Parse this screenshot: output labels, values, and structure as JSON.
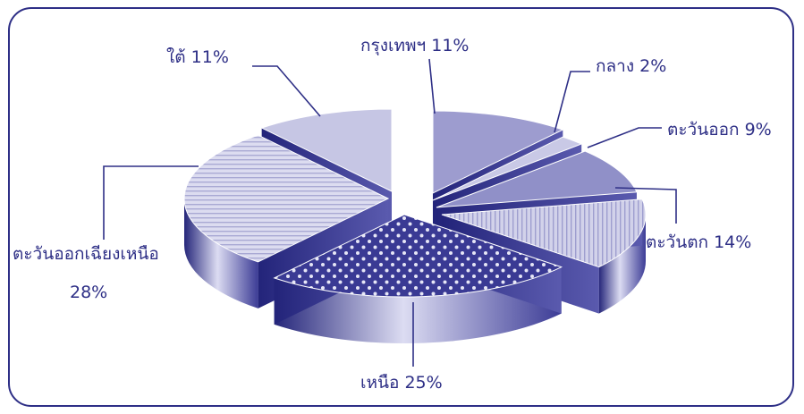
{
  "chart_data": {
    "type": "pie",
    "style": "3d-exploded",
    "slices": [
      {
        "label": "กรุงเทพฯ 11%",
        "value": 11,
        "color": "#9d9ccf",
        "pattern": "solid"
      },
      {
        "label": "กลาง 2%",
        "value": 2,
        "color": "#c9c9e6",
        "pattern": "solid"
      },
      {
        "label": "ตะวันออก 9%",
        "value": 9,
        "color": "#9090c8",
        "pattern": "solid"
      },
      {
        "label": "ตะวันตก 14%",
        "value": 14,
        "color": "#c4c4e2",
        "pattern": "vertical-stripes"
      },
      {
        "label": "เหนือ 25%",
        "value": 25,
        "color": "#3a3a94",
        "pattern": "dots"
      },
      {
        "label": "ตะวันออกเฉียงเหนือ",
        "label_line2": "28%",
        "value": 28,
        "color": "#dadaf0",
        "pattern": "horizontal-stripes"
      },
      {
        "label": "ใต้ 11%",
        "value": 11,
        "color": "#c6c6e4",
        "pattern": "solid"
      }
    ],
    "colors": {
      "frame": "#2e2f86",
      "text": "#2e2f86"
    }
  }
}
